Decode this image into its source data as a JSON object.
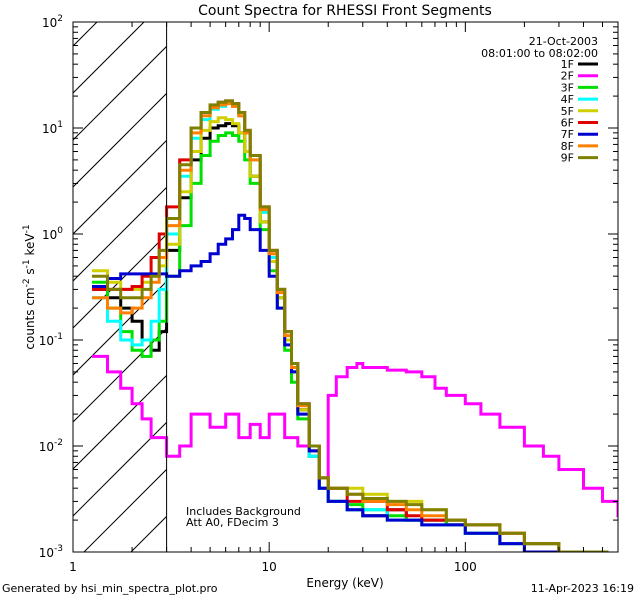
{
  "chart_data": {
    "type": "line",
    "title": "Count Spectra for RHESSI Front Segments",
    "xlabel": "Energy (keV)",
    "ylabel": "counts cm-2 s-1 keV-1",
    "xscale": "log",
    "yscale": "log",
    "xlim": [
      1,
      600
    ],
    "ylim": [
      0.001,
      100
    ],
    "x_ticks": [
      {
        "value": 1,
        "label": "1"
      },
      {
        "value": 10,
        "label": "10"
      },
      {
        "value": 100,
        "label": "100"
      }
    ],
    "y_ticks": [
      {
        "value": 0.001,
        "base": "10",
        "exp": "-3"
      },
      {
        "value": 0.01,
        "base": "10",
        "exp": "-2"
      },
      {
        "value": 0.1,
        "base": "10",
        "exp": "-1"
      },
      {
        "value": 1,
        "base": "10",
        "exp": "0"
      },
      {
        "value": 10,
        "base": "10",
        "exp": "1"
      },
      {
        "value": 100,
        "base": "10",
        "exp": "2"
      }
    ],
    "date": "21-Oct-2003",
    "time_range": "08:01:00 to 08:02:00",
    "excluded_region_max_keV": 3,
    "annotations": [
      "Includes Background",
      "Att A0, FDecim 3"
    ],
    "series": [
      {
        "name": "1F",
        "color": "#000000",
        "x": [
          1.25,
          1.5,
          1.75,
          2,
          2.25,
          2.5,
          2.75,
          3,
          3.5,
          4,
          4.5,
          5,
          5.5,
          6,
          6.5,
          7,
          7.5,
          8,
          9,
          10,
          11,
          12,
          13,
          14,
          16,
          18,
          20,
          25,
          30,
          40,
          50,
          60,
          80,
          100,
          150,
          200,
          300,
          400,
          500
        ],
        "y": [
          0.3,
          0.25,
          0.2,
          0.15,
          0.1,
          0.08,
          0.12,
          0.7,
          2.2,
          5,
          8,
          10,
          10.5,
          11,
          10.5,
          9,
          6,
          3.5,
          1.3,
          0.55,
          0.25,
          0.1,
          0.05,
          0.022,
          0.009,
          0.004,
          0.003,
          0.0025,
          0.0022,
          0.0025,
          0.002,
          0.002,
          0.0018,
          0.0015,
          0.0012,
          0.001,
          0.001,
          0.001,
          0.001
        ]
      },
      {
        "name": "2F",
        "color": "#ff00ff",
        "x": [
          1.25,
          1.5,
          1.75,
          2,
          2.25,
          2.5,
          3,
          3.5,
          4,
          5,
          6,
          7,
          8,
          9,
          10,
          12,
          14,
          16,
          18,
          20,
          22,
          25,
          28,
          30,
          35,
          40,
          50,
          60,
          70,
          80,
          100,
          120,
          150,
          200,
          250,
          300,
          400,
          500,
          600
        ],
        "y": [
          0.07,
          0.05,
          0.035,
          0.025,
          0.018,
          0.012,
          0.008,
          0.01,
          0.02,
          0.015,
          0.02,
          0.012,
          0.016,
          0.012,
          0.02,
          0.012,
          0.01,
          0.008,
          0.004,
          0.03,
          0.045,
          0.055,
          0.06,
          0.055,
          0.055,
          0.052,
          0.05,
          0.045,
          0.035,
          0.03,
          0.025,
          0.02,
          0.015,
          0.01,
          0.008,
          0.006,
          0.004,
          0.003,
          0.0022
        ]
      },
      {
        "name": "3F",
        "color": "#00e000",
        "x": [
          1.25,
          1.5,
          1.75,
          2,
          2.25,
          2.5,
          2.75,
          3,
          3.5,
          4,
          4.5,
          5,
          5.5,
          6,
          6.5,
          7,
          7.5,
          8,
          9,
          10,
          11,
          12,
          13,
          14,
          16,
          18,
          20,
          25,
          30,
          40,
          50,
          60,
          80,
          100,
          150,
          200,
          300,
          400,
          500
        ],
        "y": [
          0.35,
          0.2,
          0.12,
          0.08,
          0.07,
          0.1,
          0.15,
          0.4,
          1.2,
          3,
          5.5,
          7.5,
          8.5,
          9,
          8.5,
          7.5,
          5,
          3,
          1.1,
          0.45,
          0.2,
          0.08,
          0.04,
          0.018,
          0.008,
          0.004,
          0.003,
          0.0028,
          0.0025,
          0.0022,
          0.002,
          0.002,
          0.0018,
          0.0015,
          0.0012,
          0.0012,
          0.001,
          0.001,
          0.001
        ]
      },
      {
        "name": "4F",
        "color": "#00ffff",
        "x": [
          1.25,
          1.5,
          1.75,
          2,
          2.25,
          2.5,
          2.75,
          3,
          3.5,
          4,
          4.5,
          5,
          5.5,
          6,
          6.5,
          7,
          7.5,
          8,
          9,
          10,
          11,
          12,
          13,
          14,
          16,
          18,
          20,
          25,
          30,
          40,
          50,
          60,
          80,
          100,
          150,
          200,
          300,
          400,
          500
        ],
        "y": [
          0.25,
          0.15,
          0.1,
          0.09,
          0.1,
          0.15,
          0.3,
          1,
          3.5,
          8,
          12,
          15,
          16,
          17,
          16,
          13,
          9,
          5,
          1.6,
          0.6,
          0.25,
          0.1,
          0.05,
          0.02,
          0.008,
          0.004,
          0.003,
          0.0025,
          0.0025,
          0.002,
          0.002,
          0.0018,
          0.0018,
          0.0015,
          0.0012,
          0.0012,
          0.001,
          0.001,
          0.001
        ]
      },
      {
        "name": "5F",
        "color": "#d0d000",
        "x": [
          1.25,
          1.5,
          1.75,
          2,
          2.25,
          2.5,
          2.75,
          3,
          3.5,
          4,
          4.5,
          5,
          5.5,
          6,
          6.5,
          7,
          7.5,
          8,
          9,
          10,
          11,
          12,
          13,
          14,
          16,
          18,
          20,
          25,
          30,
          40,
          50,
          60,
          80,
          100,
          150,
          200,
          300,
          400,
          500
        ],
        "y": [
          0.45,
          0.35,
          0.3,
          0.3,
          0.35,
          0.4,
          0.5,
          0.8,
          2.5,
          6,
          9.5,
          11.5,
          12.5,
          12,
          11,
          9,
          6,
          3.5,
          1.3,
          0.55,
          0.25,
          0.1,
          0.05,
          0.022,
          0.009,
          0.005,
          0.004,
          0.004,
          0.0035,
          0.003,
          0.003,
          0.0025,
          0.002,
          0.0018,
          0.0015,
          0.0012,
          0.001,
          0.001,
          0.001
        ]
      },
      {
        "name": "6F",
        "color": "#e00000",
        "x": [
          1.25,
          1.5,
          1.75,
          2,
          2.25,
          2.5,
          2.75,
          3,
          3.5,
          4,
          4.5,
          5,
          5.5,
          6,
          6.5,
          7,
          7.5,
          8,
          9,
          10,
          11,
          12,
          13,
          14,
          16,
          18,
          20,
          25,
          30,
          40,
          50,
          60,
          80,
          100,
          150,
          200,
          300,
          400,
          500
        ],
        "y": [
          0.3,
          0.3,
          0.3,
          0.32,
          0.4,
          0.6,
          1,
          1.8,
          5,
          10,
          14,
          16,
          17.5,
          18,
          17,
          14,
          9.5,
          5.5,
          1.8,
          0.7,
          0.3,
          0.12,
          0.06,
          0.025,
          0.01,
          0.005,
          0.004,
          0.003,
          0.003,
          0.0025,
          0.0022,
          0.002,
          0.002,
          0.0018,
          0.0015,
          0.0012,
          0.001,
          0.001,
          0.001
        ]
      },
      {
        "name": "7F",
        "color": "#0000d0",
        "x": [
          1.25,
          1.5,
          1.75,
          2,
          2.25,
          2.5,
          2.75,
          3,
          3.5,
          4,
          4.5,
          5,
          5.5,
          6,
          6.5,
          7,
          7.5,
          8,
          9,
          10,
          11,
          12,
          13,
          14,
          16,
          18,
          20,
          25,
          30,
          40,
          50,
          60,
          80,
          100,
          150,
          200,
          300,
          400,
          500
        ],
        "y": [
          0.32,
          0.38,
          0.42,
          0.42,
          0.42,
          0.42,
          0.42,
          0.4,
          0.45,
          0.5,
          0.55,
          0.65,
          0.8,
          0.9,
          1.1,
          1.5,
          1.4,
          1.1,
          0.7,
          0.4,
          0.2,
          0.09,
          0.05,
          0.02,
          0.009,
          0.004,
          0.003,
          0.0025,
          0.0022,
          0.002,
          0.002,
          0.0018,
          0.0018,
          0.0015,
          0.0012,
          0.001,
          0.001,
          0.001,
          0.001
        ]
      },
      {
        "name": "8F",
        "color": "#ff8000",
        "x": [
          1.25,
          1.5,
          1.75,
          2,
          2.25,
          2.5,
          2.75,
          3,
          3.5,
          4,
          4.5,
          5,
          5.5,
          6,
          6.5,
          7,
          7.5,
          8,
          9,
          10,
          11,
          12,
          13,
          14,
          16,
          18,
          20,
          25,
          30,
          40,
          50,
          60,
          80,
          100,
          150,
          200,
          300,
          400,
          500
        ],
        "y": [
          0.25,
          0.2,
          0.18,
          0.2,
          0.25,
          0.35,
          0.6,
          1.2,
          4,
          9,
          13,
          15.5,
          16.5,
          17,
          16,
          13,
          9,
          5,
          1.7,
          0.65,
          0.28,
          0.11,
          0.055,
          0.024,
          0.01,
          0.005,
          0.004,
          0.0035,
          0.003,
          0.0028,
          0.0025,
          0.0022,
          0.002,
          0.0018,
          0.0015,
          0.0012,
          0.001,
          0.001,
          0.001
        ]
      },
      {
        "name": "9F",
        "color": "#808000",
        "x": [
          1.25,
          1.5,
          1.75,
          2,
          2.25,
          2.5,
          2.75,
          3,
          3.5,
          4,
          4.5,
          5,
          5.5,
          6,
          6.5,
          7,
          7.5,
          8,
          9,
          10,
          11,
          12,
          13,
          14,
          16,
          18,
          20,
          25,
          30,
          40,
          50,
          60,
          80,
          100,
          150,
          200,
          300,
          400,
          500
        ],
        "y": [
          0.4,
          0.3,
          0.25,
          0.25,
          0.3,
          0.4,
          0.7,
          1.4,
          4.5,
          10,
          14,
          16.5,
          17.5,
          18,
          17,
          14,
          9.5,
          5.5,
          1.8,
          0.7,
          0.3,
          0.12,
          0.06,
          0.025,
          0.01,
          0.005,
          0.004,
          0.0035,
          0.0032,
          0.003,
          0.0028,
          0.0025,
          0.002,
          0.0018,
          0.0015,
          0.0012,
          0.001,
          0.001,
          0.001
        ]
      }
    ]
  },
  "footer": {
    "generated_by": "Generated by hsi_min_spectra_plot.pro",
    "timestamp": "11-Apr-2023 16:19"
  }
}
